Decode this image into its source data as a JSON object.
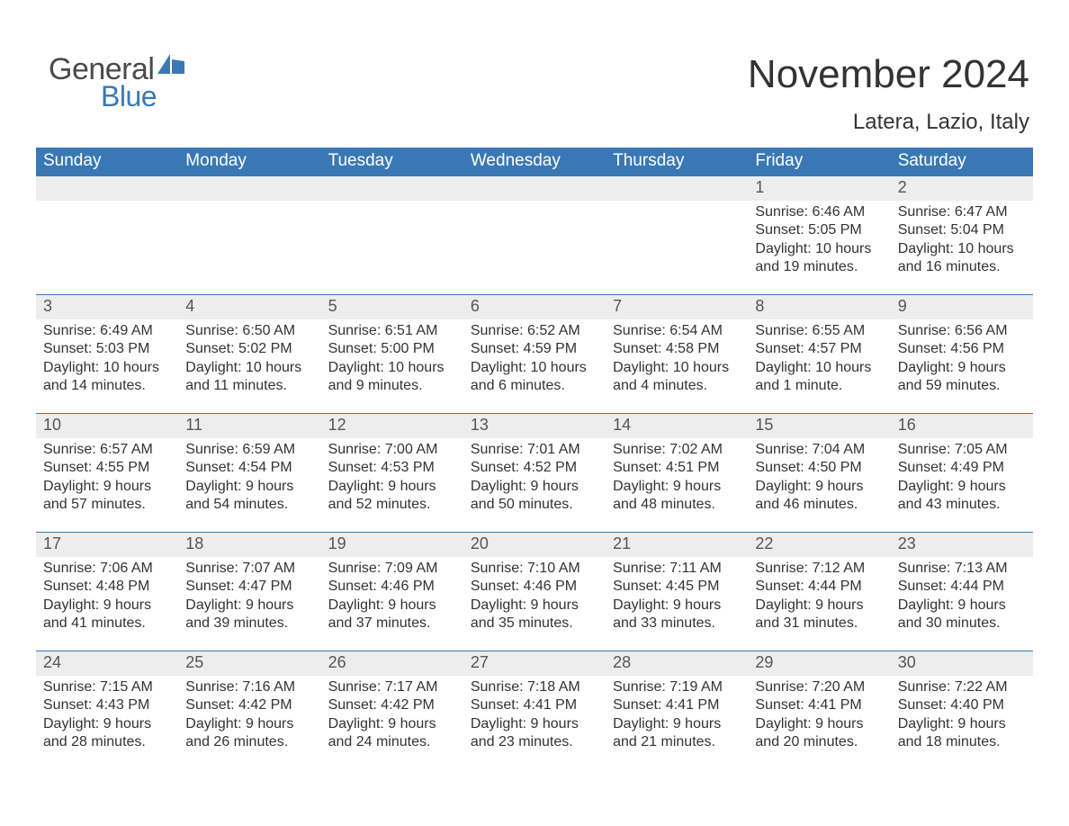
{
  "brand": {
    "top": "General",
    "bottom": "Blue"
  },
  "title": "November 2024",
  "subtitle": "Latera, Lazio, Italy",
  "colors": {
    "header_bg": "#3a78b5",
    "header_text": "#ffffff",
    "daynum_bg": "#ededed",
    "daynum_text": "#555555",
    "body_text": "#333333",
    "row_top_border": "#3a78b5",
    "page_bg": "#ffffff",
    "logo_gray": "#4a4a4a",
    "logo_blue": "#3a78b5"
  },
  "layout": {
    "columns": 7,
    "rows": 5,
    "start_day_index": 5,
    "title_fontsize": 44,
    "subtitle_fontsize": 24,
    "header_fontsize": 19,
    "cell_fontsize": 16
  },
  "weekdays": [
    "Sunday",
    "Monday",
    "Tuesday",
    "Wednesday",
    "Thursday",
    "Friday",
    "Saturday"
  ],
  "days": [
    {
      "n": 1,
      "sunrise": "6:46 AM",
      "sunset": "5:05 PM",
      "daylight": "10 hours and 19 minutes."
    },
    {
      "n": 2,
      "sunrise": "6:47 AM",
      "sunset": "5:04 PM",
      "daylight": "10 hours and 16 minutes."
    },
    {
      "n": 3,
      "sunrise": "6:49 AM",
      "sunset": "5:03 PM",
      "daylight": "10 hours and 14 minutes."
    },
    {
      "n": 4,
      "sunrise": "6:50 AM",
      "sunset": "5:02 PM",
      "daylight": "10 hours and 11 minutes."
    },
    {
      "n": 5,
      "sunrise": "6:51 AM",
      "sunset": "5:00 PM",
      "daylight": "10 hours and 9 minutes."
    },
    {
      "n": 6,
      "sunrise": "6:52 AM",
      "sunset": "4:59 PM",
      "daylight": "10 hours and 6 minutes."
    },
    {
      "n": 7,
      "sunrise": "6:54 AM",
      "sunset": "4:58 PM",
      "daylight": "10 hours and 4 minutes."
    },
    {
      "n": 8,
      "sunrise": "6:55 AM",
      "sunset": "4:57 PM",
      "daylight": "10 hours and 1 minute."
    },
    {
      "n": 9,
      "sunrise": "6:56 AM",
      "sunset": "4:56 PM",
      "daylight": "9 hours and 59 minutes."
    },
    {
      "n": 10,
      "sunrise": "6:57 AM",
      "sunset": "4:55 PM",
      "daylight": "9 hours and 57 minutes."
    },
    {
      "n": 11,
      "sunrise": "6:59 AM",
      "sunset": "4:54 PM",
      "daylight": "9 hours and 54 minutes."
    },
    {
      "n": 12,
      "sunrise": "7:00 AM",
      "sunset": "4:53 PM",
      "daylight": "9 hours and 52 minutes."
    },
    {
      "n": 13,
      "sunrise": "7:01 AM",
      "sunset": "4:52 PM",
      "daylight": "9 hours and 50 minutes."
    },
    {
      "n": 14,
      "sunrise": "7:02 AM",
      "sunset": "4:51 PM",
      "daylight": "9 hours and 48 minutes."
    },
    {
      "n": 15,
      "sunrise": "7:04 AM",
      "sunset": "4:50 PM",
      "daylight": "9 hours and 46 minutes."
    },
    {
      "n": 16,
      "sunrise": "7:05 AM",
      "sunset": "4:49 PM",
      "daylight": "9 hours and 43 minutes."
    },
    {
      "n": 17,
      "sunrise": "7:06 AM",
      "sunset": "4:48 PM",
      "daylight": "9 hours and 41 minutes."
    },
    {
      "n": 18,
      "sunrise": "7:07 AM",
      "sunset": "4:47 PM",
      "daylight": "9 hours and 39 minutes."
    },
    {
      "n": 19,
      "sunrise": "7:09 AM",
      "sunset": "4:46 PM",
      "daylight": "9 hours and 37 minutes."
    },
    {
      "n": 20,
      "sunrise": "7:10 AM",
      "sunset": "4:46 PM",
      "daylight": "9 hours and 35 minutes."
    },
    {
      "n": 21,
      "sunrise": "7:11 AM",
      "sunset": "4:45 PM",
      "daylight": "9 hours and 33 minutes."
    },
    {
      "n": 22,
      "sunrise": "7:12 AM",
      "sunset": "4:44 PM",
      "daylight": "9 hours and 31 minutes."
    },
    {
      "n": 23,
      "sunrise": "7:13 AM",
      "sunset": "4:44 PM",
      "daylight": "9 hours and 30 minutes."
    },
    {
      "n": 24,
      "sunrise": "7:15 AM",
      "sunset": "4:43 PM",
      "daylight": "9 hours and 28 minutes."
    },
    {
      "n": 25,
      "sunrise": "7:16 AM",
      "sunset": "4:42 PM",
      "daylight": "9 hours and 26 minutes."
    },
    {
      "n": 26,
      "sunrise": "7:17 AM",
      "sunset": "4:42 PM",
      "daylight": "9 hours and 24 minutes."
    },
    {
      "n": 27,
      "sunrise": "7:18 AM",
      "sunset": "4:41 PM",
      "daylight": "9 hours and 23 minutes."
    },
    {
      "n": 28,
      "sunrise": "7:19 AM",
      "sunset": "4:41 PM",
      "daylight": "9 hours and 21 minutes."
    },
    {
      "n": 29,
      "sunrise": "7:20 AM",
      "sunset": "4:41 PM",
      "daylight": "9 hours and 20 minutes."
    },
    {
      "n": 30,
      "sunrise": "7:22 AM",
      "sunset": "4:40 PM",
      "daylight": "9 hours and 18 minutes."
    }
  ],
  "labels": {
    "sunrise_prefix": "Sunrise: ",
    "sunset_prefix": "Sunset: ",
    "daylight_prefix": "Daylight: "
  }
}
